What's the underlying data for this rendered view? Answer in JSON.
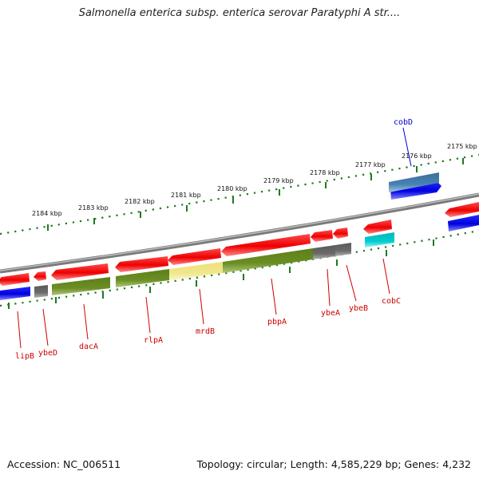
{
  "title": "Salmonella enterica subsp. enterica serovar Paratyphi A str....",
  "footer": {
    "accession": "Accession: NC_006511",
    "stats": "Topology: circular; Length: 4,585,229 bp; Genes: 4,232"
  },
  "colors": {
    "backbone": "#808080",
    "ruler": "#1e7a1e",
    "forward_gene": "#ff0000",
    "reverse_gene": "#0000ff",
    "cds_olive": "#6b8e23",
    "highlight_yellow": "#f0e68c",
    "gray_gene": "#696969",
    "steel_blue": "#4682b4",
    "cyan": "#00ced1",
    "label_red": "#cc0000",
    "label_blue": "#0000cc"
  },
  "ruler": {
    "labels": [
      "2184 kbp",
      "2183 kbp",
      "2182 kbp",
      "2181 kbp",
      "2180 kbp",
      "2179 kbp",
      "2178 kbp",
      "2177 kbp",
      "2176 kbp",
      "2175 kbp"
    ]
  },
  "genes": [
    {
      "name": "lipB",
      "label_color": "label_red"
    },
    {
      "name": "ybeD",
      "label_color": "label_red"
    },
    {
      "name": "dacA",
      "label_color": "label_red"
    },
    {
      "name": "rlpA",
      "label_color": "label_red"
    },
    {
      "name": "mrdB",
      "label_color": "label_red"
    },
    {
      "name": "pbpA",
      "label_color": "label_red"
    },
    {
      "name": "ybeA",
      "label_color": "label_red"
    },
    {
      "name": "ybeB",
      "label_color": "label_red"
    },
    {
      "name": "cobC",
      "label_color": "label_red"
    },
    {
      "name": "cobD",
      "label_color": "label_blue"
    }
  ]
}
